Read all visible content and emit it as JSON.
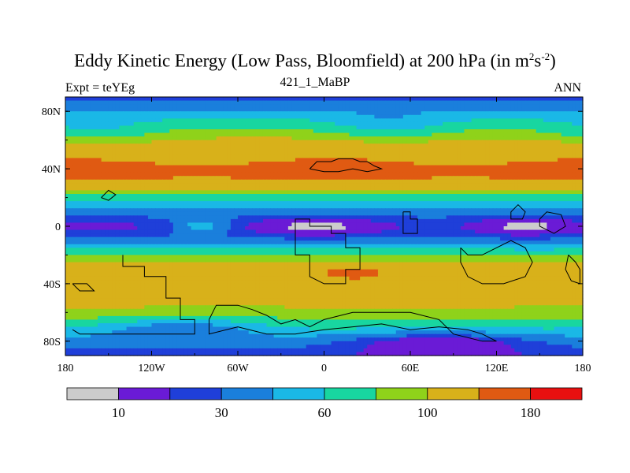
{
  "chart_data": {
    "type": "heatmap",
    "title": "Eddy Kinetic Energy (Low Pass, Bloomfield) at 200 hPa (in m",
    "title_unit_sup1": "2",
    "title_unit_mid": "s",
    "title_unit_sup2": "-2",
    "title_close": ")",
    "left_subtitle": "Expt = teYEg",
    "center_subtitle": "421_1_MaBP",
    "right_subtitle": "ANN",
    "x_ticks": [
      {
        "value": -180,
        "label": "180"
      },
      {
        "value": -120,
        "label": "120W"
      },
      {
        "value": -60,
        "label": "60W"
      },
      {
        "value": 0,
        "label": "0"
      },
      {
        "value": 60,
        "label": "60E"
      },
      {
        "value": 120,
        "label": "120E"
      },
      {
        "value": 180,
        "label": "180"
      }
    ],
    "y_ticks": [
      {
        "value": 80,
        "label": "80N"
      },
      {
        "value": 40,
        "label": "40N"
      },
      {
        "value": 0,
        "label": "0"
      },
      {
        "value": -40,
        "label": "40S"
      },
      {
        "value": -80,
        "label": "80S"
      }
    ],
    "xlim": [
      -180,
      180
    ],
    "ylim": [
      -90,
      90
    ],
    "levels": [
      5,
      10,
      20,
      30,
      45,
      60,
      80,
      100,
      140,
      180
    ],
    "colors": [
      "#cccccc",
      "#6a1bd6",
      "#1f3fd9",
      "#1a7fdc",
      "#1ab8e6",
      "#18d6a0",
      "#8fd21a",
      "#d8b11a",
      "#e05a12",
      "#e81010"
    ],
    "colorbar_labels": [
      {
        "level_index": 1,
        "label": "10"
      },
      {
        "level_index": 3,
        "label": "30"
      },
      {
        "level_index": 5,
        "label": "60"
      },
      {
        "level_index": 7,
        "label": "100"
      },
      {
        "level_index": 9,
        "label": "180"
      }
    ],
    "lat_profile": [
      {
        "lat": 90,
        "value": 25
      },
      {
        "lat": 85,
        "value": 35
      },
      {
        "lat": 80,
        "value": 48
      },
      {
        "lat": 75,
        "value": 60
      },
      {
        "lat": 70,
        "value": 75
      },
      {
        "lat": 65,
        "value": 90
      },
      {
        "lat": 60,
        "value": 105
      },
      {
        "lat": 55,
        "value": 118
      },
      {
        "lat": 50,
        "value": 128
      },
      {
        "lat": 45,
        "value": 140
      },
      {
        "lat": 40,
        "value": 150
      },
      {
        "lat": 35,
        "value": 150
      },
      {
        "lat": 30,
        "value": 125
      },
      {
        "lat": 25,
        "value": 95
      },
      {
        "lat": 20,
        "value": 72
      },
      {
        "lat": 15,
        "value": 55
      },
      {
        "lat": 10,
        "value": 40
      },
      {
        "lat": 5,
        "value": 28
      },
      {
        "lat": 0,
        "value": 22
      },
      {
        "lat": -5,
        "value": 26
      },
      {
        "lat": -10,
        "value": 38
      },
      {
        "lat": -15,
        "value": 55
      },
      {
        "lat": -20,
        "value": 78
      },
      {
        "lat": -25,
        "value": 100
      },
      {
        "lat": -30,
        "value": 112
      },
      {
        "lat": -35,
        "value": 118
      },
      {
        "lat": -40,
        "value": 120
      },
      {
        "lat": -45,
        "value": 118
      },
      {
        "lat": -50,
        "value": 112
      },
      {
        "lat": -55,
        "value": 104
      },
      {
        "lat": -60,
        "value": 95
      },
      {
        "lat": -65,
        "value": 82
      },
      {
        "lat": -70,
        "value": 68
      },
      {
        "lat": -75,
        "value": 55
      },
      {
        "lat": -80,
        "value": 42
      },
      {
        "lat": -85,
        "value": 32
      },
      {
        "lat": -90,
        "value": 22
      }
    ],
    "anomalies": [
      {
        "lon": -5,
        "lat": 0,
        "rlon": 45,
        "rlat": 9,
        "amp": -16
      },
      {
        "lon": 140,
        "lat": 0,
        "rlon": 35,
        "rlat": 9,
        "amp": -16
      },
      {
        "lon": -150,
        "lat": 0,
        "rlon": 30,
        "rlat": 8,
        "amp": -5
      },
      {
        "lon": -85,
        "lat": 0,
        "rlon": 18,
        "rlat": 5,
        "amp": 30
      },
      {
        "lon": -160,
        "lat": 65,
        "rlon": 45,
        "rlat": 10,
        "amp": -25
      },
      {
        "lon": 45,
        "lat": 68,
        "rlon": 45,
        "rlat": 10,
        "amp": -25
      },
      {
        "lon": 20,
        "lat": -32,
        "rlon": 25,
        "rlat": 5,
        "amp": 40
      },
      {
        "lon": -100,
        "lat": -70,
        "rlon": 60,
        "rlat": 8,
        "amp": -30
      },
      {
        "lon": 80,
        "lat": -80,
        "rlon": 70,
        "rlat": 8,
        "amp": -30
      }
    ],
    "coastlines": [
      [
        [
          -140,
          -20
        ],
        [
          -140,
          -28
        ],
        [
          -125,
          -28
        ],
        [
          -125,
          -35
        ],
        [
          -110,
          -35
        ],
        [
          -110,
          -50
        ],
        [
          -100,
          -50
        ],
        [
          -100,
          -65
        ],
        [
          -90,
          -65
        ],
        [
          -90,
          -75
        ],
        [
          -110,
          -75
        ],
        [
          -130,
          -75
        ],
        [
          -150,
          -75
        ],
        [
          -170,
          -75
        ],
        [
          -175,
          -72
        ]
      ],
      [
        [
          -80,
          -65
        ],
        [
          -75,
          -55
        ],
        [
          -60,
          -55
        ],
        [
          -50,
          -58
        ],
        [
          -40,
          -62
        ],
        [
          -30,
          -68
        ],
        [
          -20,
          -65
        ],
        [
          -10,
          -70
        ],
        [
          0,
          -65
        ],
        [
          20,
          -60
        ],
        [
          40,
          -60
        ],
        [
          60,
          -60
        ],
        [
          80,
          -65
        ],
        [
          90,
          -75
        ],
        [
          110,
          -80
        ],
        [
          120,
          -80
        ],
        [
          110,
          -75
        ],
        [
          100,
          -72
        ],
        [
          80,
          -70
        ],
        [
          60,
          -72
        ],
        [
          40,
          -68
        ],
        [
          20,
          -70
        ],
        [
          0,
          -72
        ],
        [
          -20,
          -75
        ],
        [
          -40,
          -75
        ],
        [
          -60,
          -70
        ],
        [
          -80,
          -75
        ],
        [
          -80,
          -65
        ]
      ],
      [
        [
          -20,
          -5
        ],
        [
          -20,
          5
        ],
        [
          -10,
          5
        ],
        [
          -10,
          0
        ],
        [
          5,
          0
        ],
        [
          5,
          -5
        ],
        [
          15,
          -5
        ],
        [
          15,
          -15
        ],
        [
          25,
          -15
        ],
        [
          25,
          -30
        ],
        [
          15,
          -30
        ],
        [
          15,
          -40
        ],
        [
          0,
          -40
        ],
        [
          -10,
          -35
        ],
        [
          -10,
          -20
        ],
        [
          -20,
          -20
        ],
        [
          -20,
          -5
        ]
      ],
      [
        [
          -10,
          40
        ],
        [
          -5,
          45
        ],
        [
          5,
          45
        ],
        [
          10,
          47
        ],
        [
          20,
          47
        ],
        [
          25,
          45
        ],
        [
          30,
          45
        ],
        [
          35,
          42
        ],
        [
          40,
          40
        ],
        [
          30,
          38
        ],
        [
          20,
          40
        ],
        [
          10,
          38
        ],
        [
          0,
          38
        ],
        [
          -10,
          40
        ]
      ],
      [
        [
          55,
          10
        ],
        [
          60,
          10
        ],
        [
          60,
          5
        ],
        [
          65,
          5
        ],
        [
          65,
          -5
        ],
        [
          60,
          -5
        ],
        [
          55,
          -5
        ],
        [
          55,
          10
        ]
      ],
      [
        [
          95,
          -15
        ],
        [
          100,
          -20
        ],
        [
          110,
          -20
        ],
        [
          120,
          -15
        ],
        [
          130,
          -10
        ],
        [
          140,
          -15
        ],
        [
          145,
          -25
        ],
        [
          140,
          -35
        ],
        [
          125,
          -40
        ],
        [
          110,
          -40
        ],
        [
          100,
          -35
        ],
        [
          95,
          -25
        ],
        [
          95,
          -15
        ]
      ],
      [
        [
          130,
          10
        ],
        [
          135,
          15
        ],
        [
          140,
          10
        ],
        [
          138,
          5
        ],
        [
          130,
          5
        ],
        [
          130,
          10
        ]
      ],
      [
        [
          150,
          5
        ],
        [
          155,
          10
        ],
        [
          165,
          8
        ],
        [
          168,
          0
        ],
        [
          160,
          -5
        ],
        [
          150,
          0
        ],
        [
          150,
          5
        ]
      ],
      [
        [
          170,
          -20
        ],
        [
          175,
          -25
        ],
        [
          178,
          -30
        ],
        [
          178,
          -40
        ],
        [
          172,
          -38
        ],
        [
          168,
          -30
        ],
        [
          170,
          -20
        ]
      ],
      [
        [
          -155,
          20
        ],
        [
          -150,
          25
        ],
        [
          -145,
          22
        ],
        [
          -150,
          18
        ],
        [
          -155,
          20
        ]
      ],
      [
        [
          -175,
          -40
        ],
        [
          -170,
          -45
        ],
        [
          -160,
          -45
        ],
        [
          -165,
          -40
        ],
        [
          -175,
          -40
        ]
      ]
    ]
  }
}
